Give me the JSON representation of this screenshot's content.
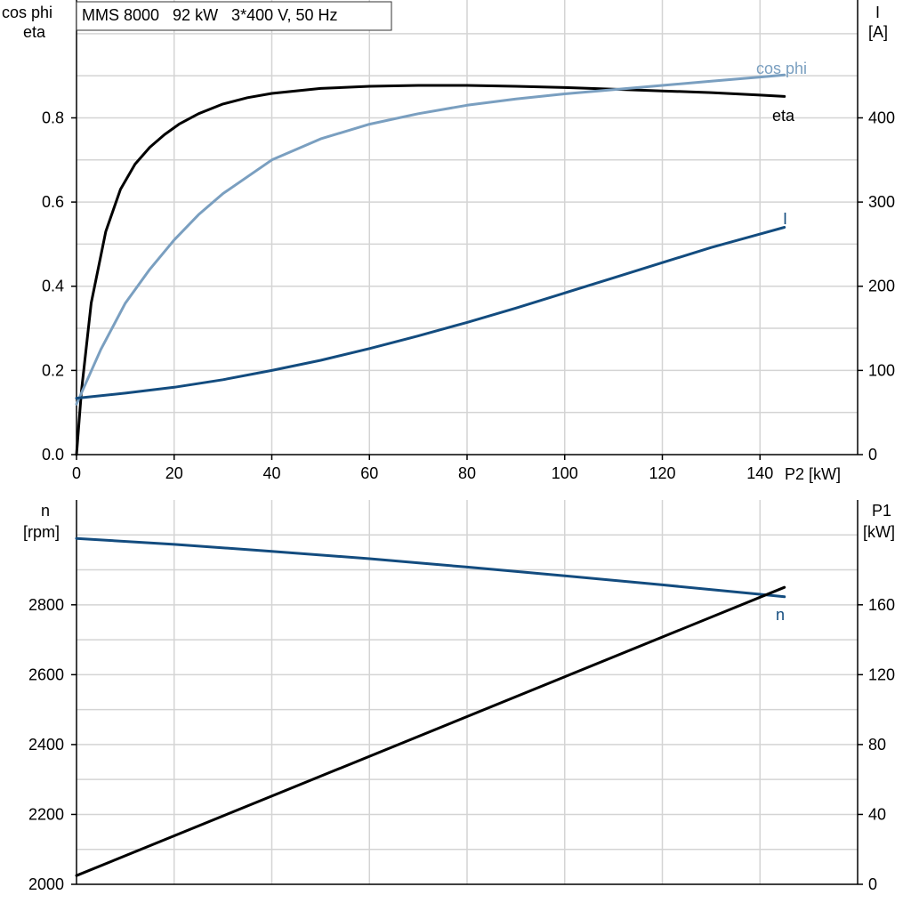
{
  "title": "MMS 8000   92 kW   3*400 V, 50 Hz",
  "colors": {
    "eta": "#000000",
    "cos_phi": "#7a9fc0",
    "I": "#134c7f",
    "n": "#134c7f",
    "P1": "#000000",
    "grid": "#d4d4d4"
  },
  "chart_data": [
    {
      "type": "line",
      "xlabel": "P2 [kW]",
      "xlim": [
        0,
        160
      ],
      "x_ticks": [
        "0",
        "20",
        "40",
        "60",
        "80",
        "100",
        "120",
        "140"
      ],
      "y_left_label_line1": "cos phi",
      "y_left_label_line2": "eta",
      "ylim_left": [
        0,
        1.08
      ],
      "y_left_ticks": [
        "0.0",
        "0.2",
        "0.4",
        "0.6",
        "0.8"
      ],
      "y_right_label_line1": "I",
      "y_right_label_line2": "[A]",
      "ylim_right": [
        0,
        540
      ],
      "y_right_ticks": [
        "0",
        "100",
        "200",
        "300",
        "400"
      ],
      "grid": true,
      "series": [
        {
          "name": "eta",
          "axis": "left",
          "x": [
            0,
            1,
            3,
            6,
            9,
            12,
            15,
            18,
            21,
            25,
            30,
            35,
            40,
            50,
            60,
            70,
            80,
            90,
            100,
            110,
            120,
            130,
            140,
            145
          ],
          "y": [
            0.0,
            0.15,
            0.36,
            0.53,
            0.63,
            0.69,
            0.73,
            0.76,
            0.785,
            0.81,
            0.833,
            0.848,
            0.858,
            0.87,
            0.875,
            0.877,
            0.877,
            0.875,
            0.872,
            0.868,
            0.864,
            0.86,
            0.854,
            0.851
          ]
        },
        {
          "name": "cos phi",
          "axis": "left",
          "x": [
            0,
            5,
            10,
            15,
            20,
            25,
            30,
            40,
            50,
            60,
            70,
            80,
            90,
            100,
            110,
            120,
            130,
            140,
            145
          ],
          "y": [
            0.12,
            0.25,
            0.36,
            0.44,
            0.51,
            0.57,
            0.62,
            0.7,
            0.75,
            0.785,
            0.81,
            0.83,
            0.845,
            0.857,
            0.867,
            0.877,
            0.887,
            0.897,
            0.902
          ]
        },
        {
          "name": "I",
          "axis": "right",
          "x": [
            0,
            10,
            20,
            30,
            40,
            50,
            60,
            70,
            80,
            90,
            100,
            110,
            120,
            130,
            140,
            145
          ],
          "y": [
            67,
            73,
            80,
            89,
            100,
            112,
            126,
            141,
            157,
            174,
            192,
            210,
            228,
            246,
            262,
            270
          ]
        }
      ],
      "legend": [
        "cos phi",
        "eta",
        "I"
      ]
    },
    {
      "type": "line",
      "xlim": [
        0,
        160
      ],
      "y_left_label_line1": "n",
      "y_left_label_line2": "[rpm]",
      "ylim_left": [
        2000,
        3100
      ],
      "y_left_ticks": [
        "2000",
        "2200",
        "2400",
        "2600",
        "2800"
      ],
      "y_right_label_line1": "P1",
      "y_right_label_line2": "[kW]",
      "ylim_right": [
        0,
        220
      ],
      "y_right_ticks": [
        "0",
        "40",
        "80",
        "120",
        "160"
      ],
      "grid": true,
      "series": [
        {
          "name": "n",
          "axis": "left",
          "x": [
            0,
            20,
            40,
            60,
            80,
            100,
            120,
            140,
            145
          ],
          "y": [
            2990,
            2973,
            2953,
            2932,
            2908,
            2883,
            2857,
            2830,
            2823
          ]
        },
        {
          "name": "P1",
          "axis": "right",
          "x": [
            0,
            145
          ],
          "y": [
            5,
            170
          ]
        }
      ],
      "legend": [
        "n"
      ]
    }
  ]
}
